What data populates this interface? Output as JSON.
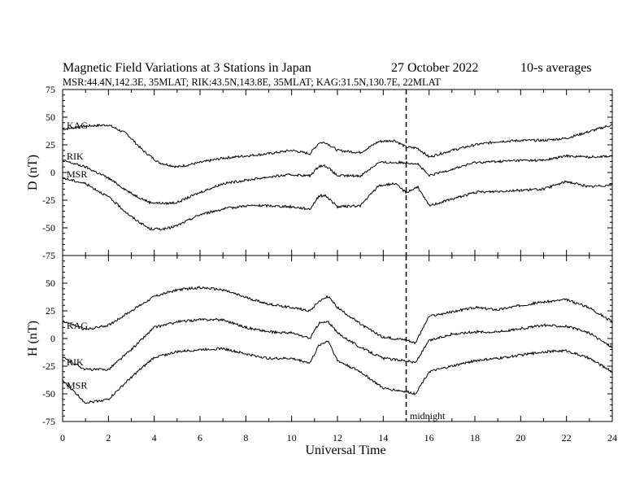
{
  "title": {
    "main": "Magnetic Field Variations at 3 Stations in Japan",
    "date": "27 October 2022",
    "avg": "10-s averages",
    "stations": "MSR:44.4N,142.3E, 35MLAT;  RIK:43.5N,143.8E, 35MLAT;  KAG:31.5N,130.7E, 22MLAT"
  },
  "xlabel": "Universal Time",
  "midnight_label": "midnight",
  "chart_data": [
    {
      "type": "line",
      "panel": "D",
      "ylabel": "D (nT)",
      "xlim": [
        0,
        24
      ],
      "ylim": [
        -75,
        75
      ],
      "yticks": [
        -75,
        -50,
        -25,
        0,
        25,
        50,
        75
      ],
      "xticks": [
        0,
        2,
        4,
        6,
        8,
        10,
        12,
        14,
        16,
        18,
        20,
        22,
        24
      ],
      "midnight_ut": 15,
      "series": [
        {
          "name": "KAG",
          "points": [
            [
              0,
              39
            ],
            [
              1,
              42
            ],
            [
              2,
              43
            ],
            [
              2.8,
              35
            ],
            [
              3.5,
              20
            ],
            [
              4.2,
              9
            ],
            [
              5,
              5
            ],
            [
              6,
              9
            ],
            [
              7,
              13
            ],
            [
              8,
              15
            ],
            [
              9,
              17
            ],
            [
              10,
              20
            ],
            [
              10.8,
              17
            ],
            [
              11.2,
              27
            ],
            [
              11.5,
              27
            ],
            [
              12,
              20
            ],
            [
              13,
              18
            ],
            [
              13.8,
              28
            ],
            [
              14.5,
              29
            ],
            [
              15,
              23
            ],
            [
              15.5,
              22
            ],
            [
              16,
              14
            ],
            [
              17,
              20
            ],
            [
              18,
              25
            ],
            [
              19,
              28
            ],
            [
              20,
              29
            ],
            [
              21,
              29
            ],
            [
              22,
              31
            ],
            [
              23,
              37
            ],
            [
              23.8,
              42
            ],
            [
              24,
              43
            ]
          ]
        },
        {
          "name": "RIK",
          "points": [
            [
              0,
              11
            ],
            [
              1,
              5
            ],
            [
              2,
              -5
            ],
            [
              3,
              -19
            ],
            [
              3.8,
              -27
            ],
            [
              4.5,
              -28
            ],
            [
              5,
              -27
            ],
            [
              6,
              -18
            ],
            [
              7,
              -10
            ],
            [
              8,
              -7
            ],
            [
              9,
              -4
            ],
            [
              10,
              -2
            ],
            [
              10.8,
              -3
            ],
            [
              11.2,
              6
            ],
            [
              11.5,
              6
            ],
            [
              12,
              -3
            ],
            [
              13,
              -3
            ],
            [
              13.8,
              9
            ],
            [
              14.5,
              9
            ],
            [
              15,
              9
            ],
            [
              15.5,
              8
            ],
            [
              16,
              -3
            ],
            [
              17,
              3
            ],
            [
              18,
              9
            ],
            [
              19,
              10
            ],
            [
              20,
              11
            ],
            [
              21,
              11
            ],
            [
              22,
              15
            ],
            [
              23,
              14
            ],
            [
              24,
              15
            ]
          ]
        },
        {
          "name": "MSR",
          "points": [
            [
              0,
              -5
            ],
            [
              1,
              -10
            ],
            [
              2,
              -22
            ],
            [
              3,
              -40
            ],
            [
              3.8,
              -51
            ],
            [
              4.5,
              -51
            ],
            [
              5,
              -48
            ],
            [
              6,
              -38
            ],
            [
              7,
              -33
            ],
            [
              8,
              -30
            ],
            [
              9,
              -30
            ],
            [
              10,
              -31
            ],
            [
              10.8,
              -33
            ],
            [
              11.2,
              -21
            ],
            [
              11.5,
              -21
            ],
            [
              12,
              -31
            ],
            [
              13,
              -30
            ],
            [
              13.8,
              -12
            ],
            [
              14.5,
              -10
            ],
            [
              15,
              -18
            ],
            [
              15.5,
              -13
            ],
            [
              16,
              -30
            ],
            [
              17,
              -24
            ],
            [
              18,
              -18
            ],
            [
              19,
              -17
            ],
            [
              20,
              -16
            ],
            [
              21,
              -15
            ],
            [
              22,
              -8
            ],
            [
              23,
              -13
            ],
            [
              24,
              -11
            ]
          ]
        }
      ]
    },
    {
      "type": "line",
      "panel": "H",
      "ylabel": "H (nT)",
      "xlim": [
        0,
        24
      ],
      "ylim": [
        -75,
        75
      ],
      "yticks": [
        -75,
        -50,
        -25,
        0,
        25,
        50,
        75
      ],
      "xticks": [
        0,
        2,
        4,
        6,
        8,
        10,
        12,
        14,
        16,
        18,
        20,
        22,
        24
      ],
      "midnight_ut": 15,
      "series": [
        {
          "name": "KAG",
          "points": [
            [
              0,
              16
            ],
            [
              1,
              8
            ],
            [
              2,
              12
            ],
            [
              3,
              25
            ],
            [
              4,
              38
            ],
            [
              5,
              44
            ],
            [
              6,
              46
            ],
            [
              7,
              44
            ],
            [
              8,
              37
            ],
            [
              9,
              31
            ],
            [
              10,
              28
            ],
            [
              10.8,
              25
            ],
            [
              11.2,
              34
            ],
            [
              11.6,
              38
            ],
            [
              12,
              28
            ],
            [
              13,
              13
            ],
            [
              14,
              1
            ],
            [
              15,
              -1
            ],
            [
              15.4,
              -4
            ],
            [
              16,
              20
            ],
            [
              17,
              24
            ],
            [
              18,
              28
            ],
            [
              19,
              26
            ],
            [
              20,
              30
            ],
            [
              21,
              33
            ],
            [
              22,
              35
            ],
            [
              23,
              28
            ],
            [
              24,
              15
            ]
          ]
        },
        {
          "name": "RIK",
          "points": [
            [
              0,
              -17
            ],
            [
              1,
              -28
            ],
            [
              2,
              -28
            ],
            [
              3,
              -10
            ],
            [
              4,
              10
            ],
            [
              5,
              15
            ],
            [
              6,
              17
            ],
            [
              7,
              17
            ],
            [
              8,
              10
            ],
            [
              9,
              6
            ],
            [
              10,
              5
            ],
            [
              10.8,
              0
            ],
            [
              11.2,
              14
            ],
            [
              11.6,
              15
            ],
            [
              12,
              5
            ],
            [
              13,
              -8
            ],
            [
              14,
              -18
            ],
            [
              15,
              -20
            ],
            [
              15.4,
              -22
            ],
            [
              16,
              -2
            ],
            [
              17,
              4
            ],
            [
              18,
              6
            ],
            [
              19,
              6
            ],
            [
              20,
              9
            ],
            [
              21,
              12
            ],
            [
              22,
              11
            ],
            [
              23,
              5
            ],
            [
              24,
              -8
            ]
          ]
        },
        {
          "name": "MSR",
          "points": [
            [
              0,
              -38
            ],
            [
              1,
              -58
            ],
            [
              2,
              -55
            ],
            [
              3,
              -35
            ],
            [
              4,
              -17
            ],
            [
              5,
              -12
            ],
            [
              6,
              -10
            ],
            [
              7,
              -9
            ],
            [
              8,
              -14
            ],
            [
              9,
              -18
            ],
            [
              10,
              -18
            ],
            [
              10.8,
              -22
            ],
            [
              11.2,
              -6
            ],
            [
              11.6,
              -2
            ],
            [
              12,
              -20
            ],
            [
              13,
              -30
            ],
            [
              14,
              -45
            ],
            [
              15,
              -48
            ],
            [
              15.4,
              -50
            ],
            [
              16,
              -30
            ],
            [
              17,
              -25
            ],
            [
              18,
              -20
            ],
            [
              19,
              -18
            ],
            [
              20,
              -15
            ],
            [
              21,
              -12
            ],
            [
              22,
              -11
            ],
            [
              23,
              -18
            ],
            [
              24,
              -30
            ]
          ]
        }
      ]
    }
  ]
}
